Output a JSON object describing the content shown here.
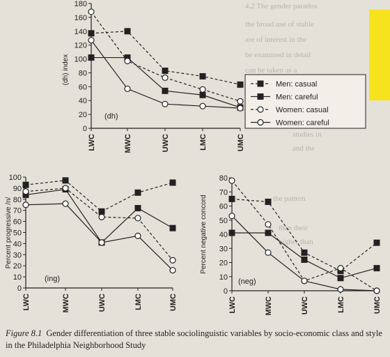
{
  "figure": {
    "label": "Figure 8.1",
    "caption": "Gender differentiation of three stable sociolinguistic variables by socio-economic class and style in the Philadelphia Neighborhood Study"
  },
  "colors": {
    "paper": "#e4e1d8",
    "ink": "#222222",
    "sticky_note": "#f7e21e"
  },
  "chart_data": [
    {
      "type": "line",
      "id": "dh",
      "tag": "(dh)",
      "ylabel": "(dh) index",
      "categories": [
        "LWC",
        "MWC",
        "UWC",
        "LMC",
        "UMC"
      ],
      "ylim": [
        0,
        180
      ],
      "yticks": [
        0,
        20,
        40,
        60,
        80,
        100,
        120,
        140,
        160,
        180
      ],
      "series": [
        {
          "name": "Men: casual",
          "values": [
            137,
            140,
            83,
            75,
            63
          ]
        },
        {
          "name": "Men: careful",
          "values": [
            102,
            102,
            54,
            48,
            30
          ]
        },
        {
          "name": "Women: casual",
          "values": [
            168,
            97,
            73,
            56,
            39
          ]
        },
        {
          "name": "Women: careful",
          "values": [
            127,
            57,
            35,
            32,
            29
          ]
        }
      ],
      "legend_position": "right"
    },
    {
      "type": "line",
      "id": "ing",
      "tag": "(ing)",
      "ylabel": "Percent progressive /n/",
      "categories": [
        "LWC",
        "MWC",
        "UWC",
        "LMC",
        "UMC"
      ],
      "ylim": [
        0,
        100
      ],
      "yticks": [
        0,
        10,
        20,
        30,
        40,
        50,
        60,
        70,
        80,
        90,
        100
      ],
      "series": [
        {
          "name": "Men: casual",
          "values": [
            93,
            97,
            69,
            86,
            95
          ]
        },
        {
          "name": "Men: careful",
          "values": [
            84,
            89,
            41,
            72,
            54
          ]
        },
        {
          "name": "Women: casual",
          "values": [
            87,
            90,
            64,
            63,
            25
          ]
        },
        {
          "name": "Women: careful",
          "values": [
            75,
            76,
            41,
            47,
            16
          ]
        }
      ]
    },
    {
      "type": "line",
      "id": "neg",
      "tag": "(neg)",
      "ylabel": "Percent negative concord",
      "categories": [
        "LWC",
        "MWC",
        "UWC",
        "LMC",
        "UMC"
      ],
      "ylim": [
        0,
        80
      ],
      "yticks": [
        0,
        10,
        20,
        30,
        40,
        50,
        60,
        70,
        80
      ],
      "series": [
        {
          "name": "Men: casual",
          "values": [
            65,
            63,
            27,
            14,
            34
          ]
        },
        {
          "name": "Men: careful",
          "values": [
            41,
            41,
            22,
            9,
            16
          ]
        },
        {
          "name": "Women: casual",
          "values": [
            78,
            47,
            7,
            16,
            0
          ]
        },
        {
          "name": "Women: careful",
          "values": [
            53,
            27,
            7,
            1,
            0
          ]
        }
      ]
    }
  ]
}
